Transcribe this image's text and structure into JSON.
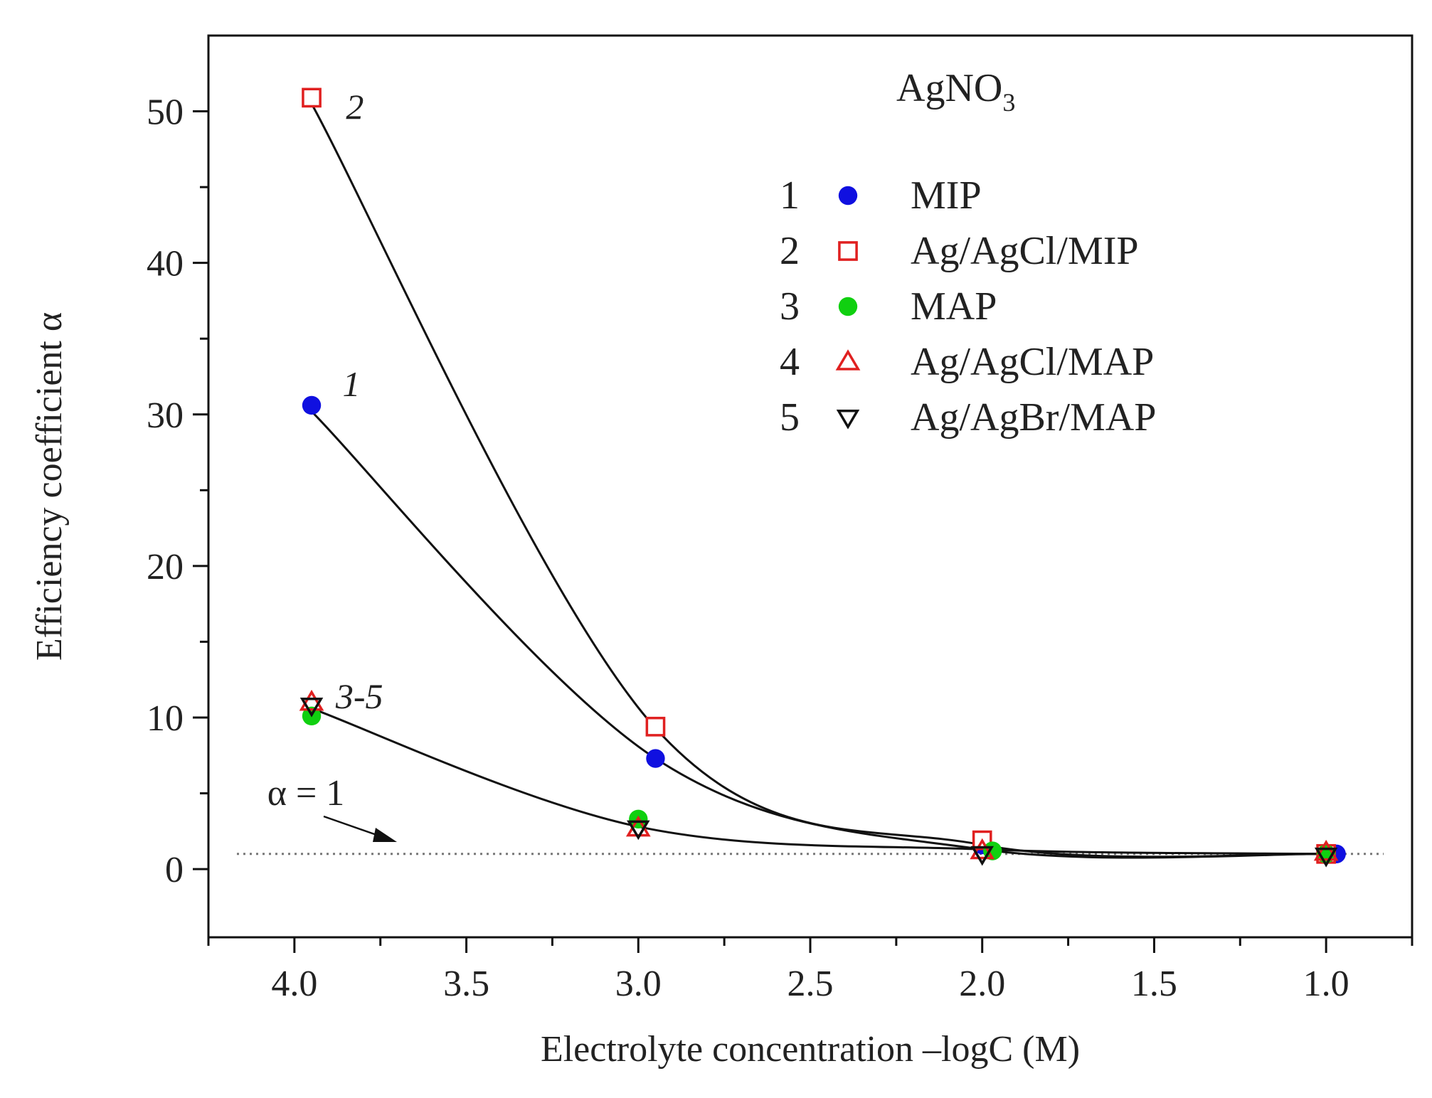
{
  "chart_data": {
    "type": "scatter",
    "title": "AgNO3",
    "title_main": "AgNO",
    "title_sub": "3",
    "xlabel": "Electrolyte concentration –logC (M)",
    "ylabel": "Efficiency coefficient α",
    "xlim": [
      4.25,
      0.75
    ],
    "ylim": [
      -4.5,
      55
    ],
    "x_reversed": true,
    "xticks": [
      4.0,
      3.5,
      3.0,
      2.5,
      2.0,
      1.5,
      1.0
    ],
    "xtick_labels": [
      "4.0",
      "3.5",
      "3.0",
      "2.5",
      "2.0",
      "1.5",
      "1.0"
    ],
    "yticks": [
      0,
      10,
      20,
      30,
      40,
      50
    ],
    "ytick_labels": [
      "0",
      "10",
      "20",
      "30",
      "40",
      "50"
    ],
    "grid": false,
    "legend_position": "top-right",
    "reference_line": {
      "y": 1,
      "label": "α = 1",
      "style": "dotted"
    },
    "series": [
      {
        "id": "1",
        "name": "MIP",
        "marker": "filled-circle",
        "color": "#1010e0",
        "x": [
          3.95,
          2.95,
          2.0,
          0.97
        ],
        "y": [
          30.6,
          7.3,
          1.6,
          1.0
        ]
      },
      {
        "id": "2",
        "name": "Ag/AgCl/MIP",
        "marker": "open-square",
        "color": "#e02020",
        "x": [
          3.95,
          2.95,
          2.0,
          1.0
        ],
        "y": [
          50.9,
          9.4,
          1.9,
          1.0
        ]
      },
      {
        "id": "3",
        "name": "MAP",
        "marker": "filled-circle",
        "color": "#10d010",
        "x": [
          3.95,
          3.0,
          1.97,
          1.0
        ],
        "y": [
          10.1,
          3.3,
          1.2,
          1.0
        ]
      },
      {
        "id": "4",
        "name": "Ag/AgCl/MAP",
        "marker": "open-triangle-up",
        "color": "#e02020",
        "x": [
          3.95,
          3.0,
          2.0,
          1.0
        ],
        "y": [
          11.0,
          2.7,
          1.2,
          1.1
        ]
      },
      {
        "id": "5",
        "name": "Ag/AgBr/MAP",
        "marker": "open-triangle-down",
        "color": "#111111",
        "x": [
          3.95,
          3.0,
          2.0,
          1.0
        ],
        "y": [
          10.8,
          2.7,
          1.0,
          0.9
        ]
      }
    ],
    "curves": [
      {
        "label": "2",
        "x": [
          3.95,
          2.95,
          2.0,
          1.0
        ],
        "y": [
          50.5,
          9.3,
          1.6,
          1.0
        ]
      },
      {
        "label": "1",
        "x": [
          3.95,
          2.95,
          2.0,
          1.0
        ],
        "y": [
          30.2,
          7.3,
          1.3,
          1.0
        ]
      },
      {
        "label": "3-5",
        "x": [
          3.95,
          3.0,
          2.0,
          1.0
        ],
        "y": [
          10.6,
          2.8,
          1.3,
          1.0
        ]
      }
    ]
  }
}
